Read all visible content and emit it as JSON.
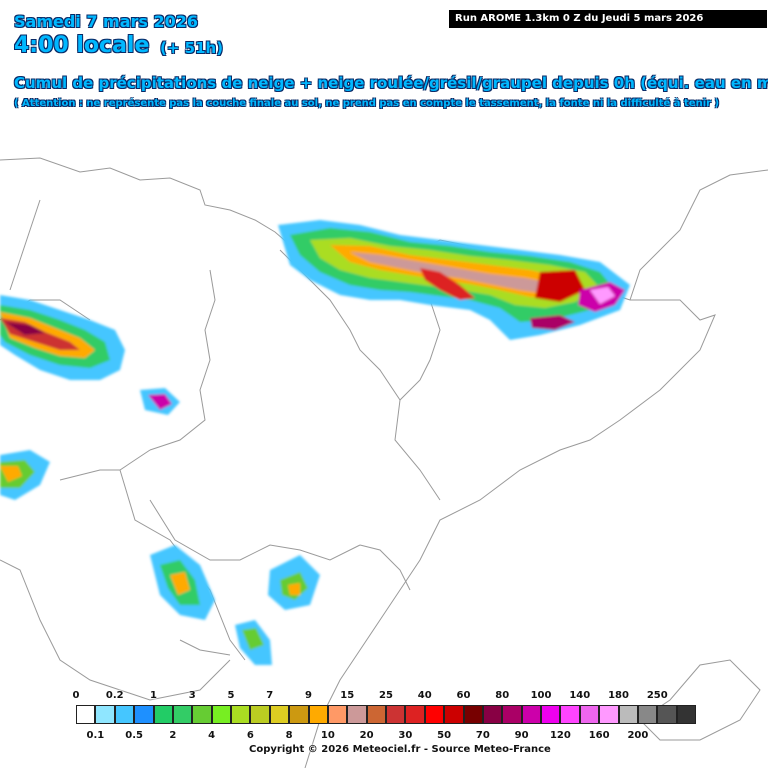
{
  "header": {
    "date": "Samedi 7 mars 2026",
    "time": "4:00 locale",
    "offset": "(+ 51h)",
    "run_info": "Run AROME 1.3km 0 Z du Jeudi 5 mars 2026",
    "description": "Cumul de précipitations de neige + neige roulée/grésil/graupel depuis 0h (équi. eau en mm)",
    "note": "( Attention : ne représente pas la couche finale au sol, ne prend pas en compte le tassement, la fonte ni la difficulté à tenir )"
  },
  "legend": {
    "top_labels": [
      "0",
      "0.2",
      "1",
      "3",
      "5",
      "7",
      "9",
      "15",
      "25",
      "40",
      "60",
      "80",
      "100",
      "140",
      "180",
      "250"
    ],
    "bottom_labels": [
      "0.1",
      "0.5",
      "2",
      "4",
      "6",
      "8",
      "10",
      "20",
      "30",
      "50",
      "70",
      "90",
      "120",
      "160",
      "200"
    ],
    "colors": [
      "#ffffff",
      "#8fe6ff",
      "#45c6ff",
      "#1e90ff",
      "#22cc66",
      "#33cc66",
      "#66cc33",
      "#77ee22",
      "#aadd22",
      "#bbcc22",
      "#ddcc22",
      "#cc9911",
      "#ffaa00",
      "#ff9966",
      "#cc9999",
      "#cc6633",
      "#cc3333",
      "#dd2222",
      "#ff0000",
      "#cc0000",
      "#770000",
      "#880044",
      "#aa0066",
      "#cc00aa",
      "#ee00ee",
      "#ff44ff",
      "#ee66ee",
      "#ff99ff",
      "#bbbbbb",
      "#888888",
      "#555555",
      "#333333"
    ]
  },
  "copyright": "Copyright © 2026 Meteociel.fr - Source Meteo-France"
}
